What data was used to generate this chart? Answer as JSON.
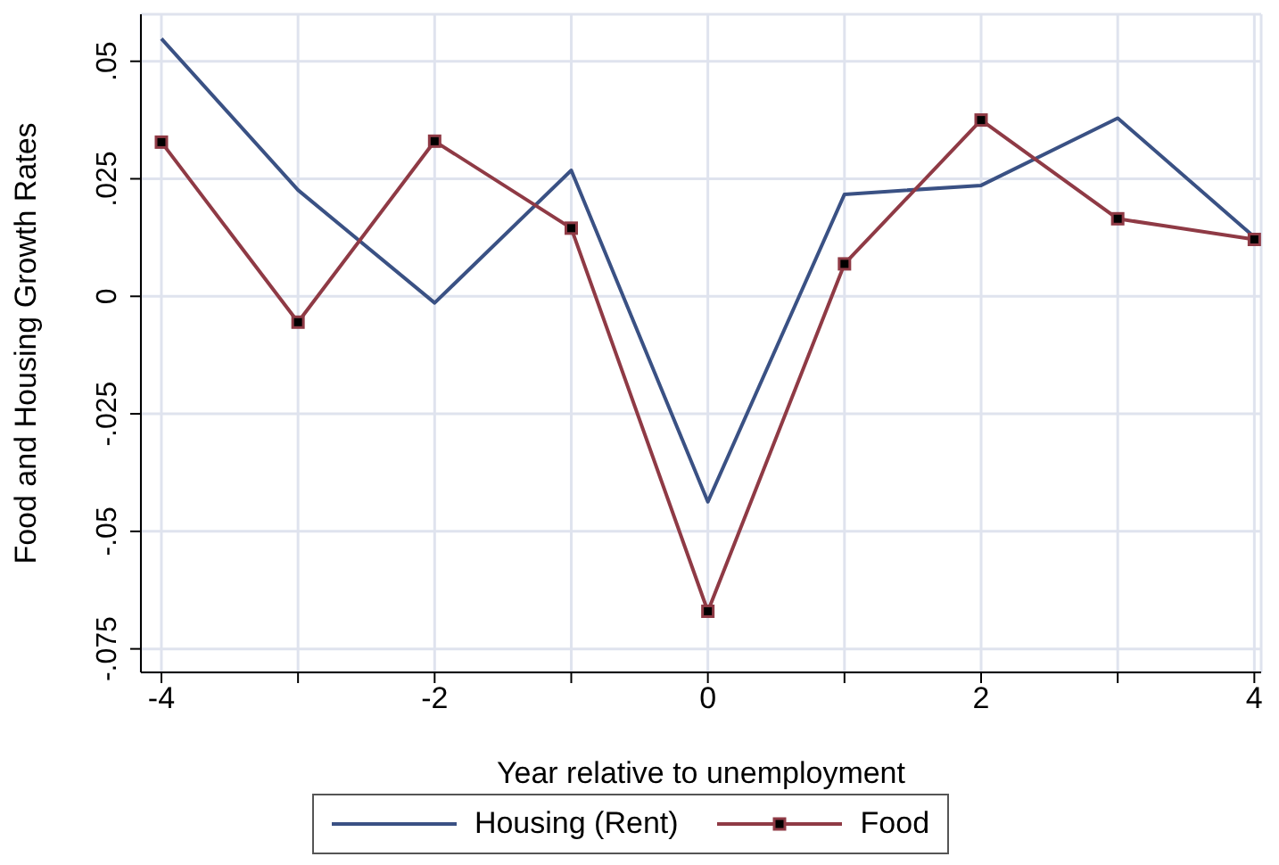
{
  "chart_data": {
    "type": "line",
    "xlabel": "Year relative to unemployment",
    "ylabel": "Food and Housing Growth Rates",
    "x": [
      -4,
      -3,
      -2,
      -1,
      0,
      1,
      2,
      3,
      4
    ],
    "series": [
      {
        "name": "Housing (Rent)",
        "color": "#3a5184",
        "marker": "none",
        "values": [
          0.0548,
          0.0226,
          -0.0014,
          0.0268,
          -0.0437,
          0.0217,
          0.0236,
          0.0379,
          0.0126
        ]
      },
      {
        "name": "Food",
        "color": "#8f3a45",
        "marker": "square",
        "values": [
          0.0328,
          -0.0055,
          0.033,
          0.0145,
          -0.067,
          0.0069,
          0.0375,
          0.0165,
          0.0121
        ]
      }
    ],
    "xlim": [
      -4.15,
      4.05
    ],
    "ylim": [
      -0.08,
      0.06
    ],
    "xticks": [
      -4,
      {
        "value": -3,
        "label": null
      },
      -2,
      {
        "value": -1,
        "label": null
      },
      0,
      {
        "value": 1,
        "label": null
      },
      2,
      {
        "value": 3,
        "label": null
      },
      4
    ],
    "yticks": [
      {
        "value": -0.075,
        "label": "-.075"
      },
      {
        "value": -0.05,
        "label": "-.05"
      },
      {
        "value": -0.025,
        "label": "-.025"
      },
      0,
      {
        "value": 0.025,
        "label": ".025"
      },
      {
        "value": 0.05,
        "label": ".05"
      }
    ],
    "grid": true,
    "legend": "bottom",
    "line_style": "solid"
  }
}
